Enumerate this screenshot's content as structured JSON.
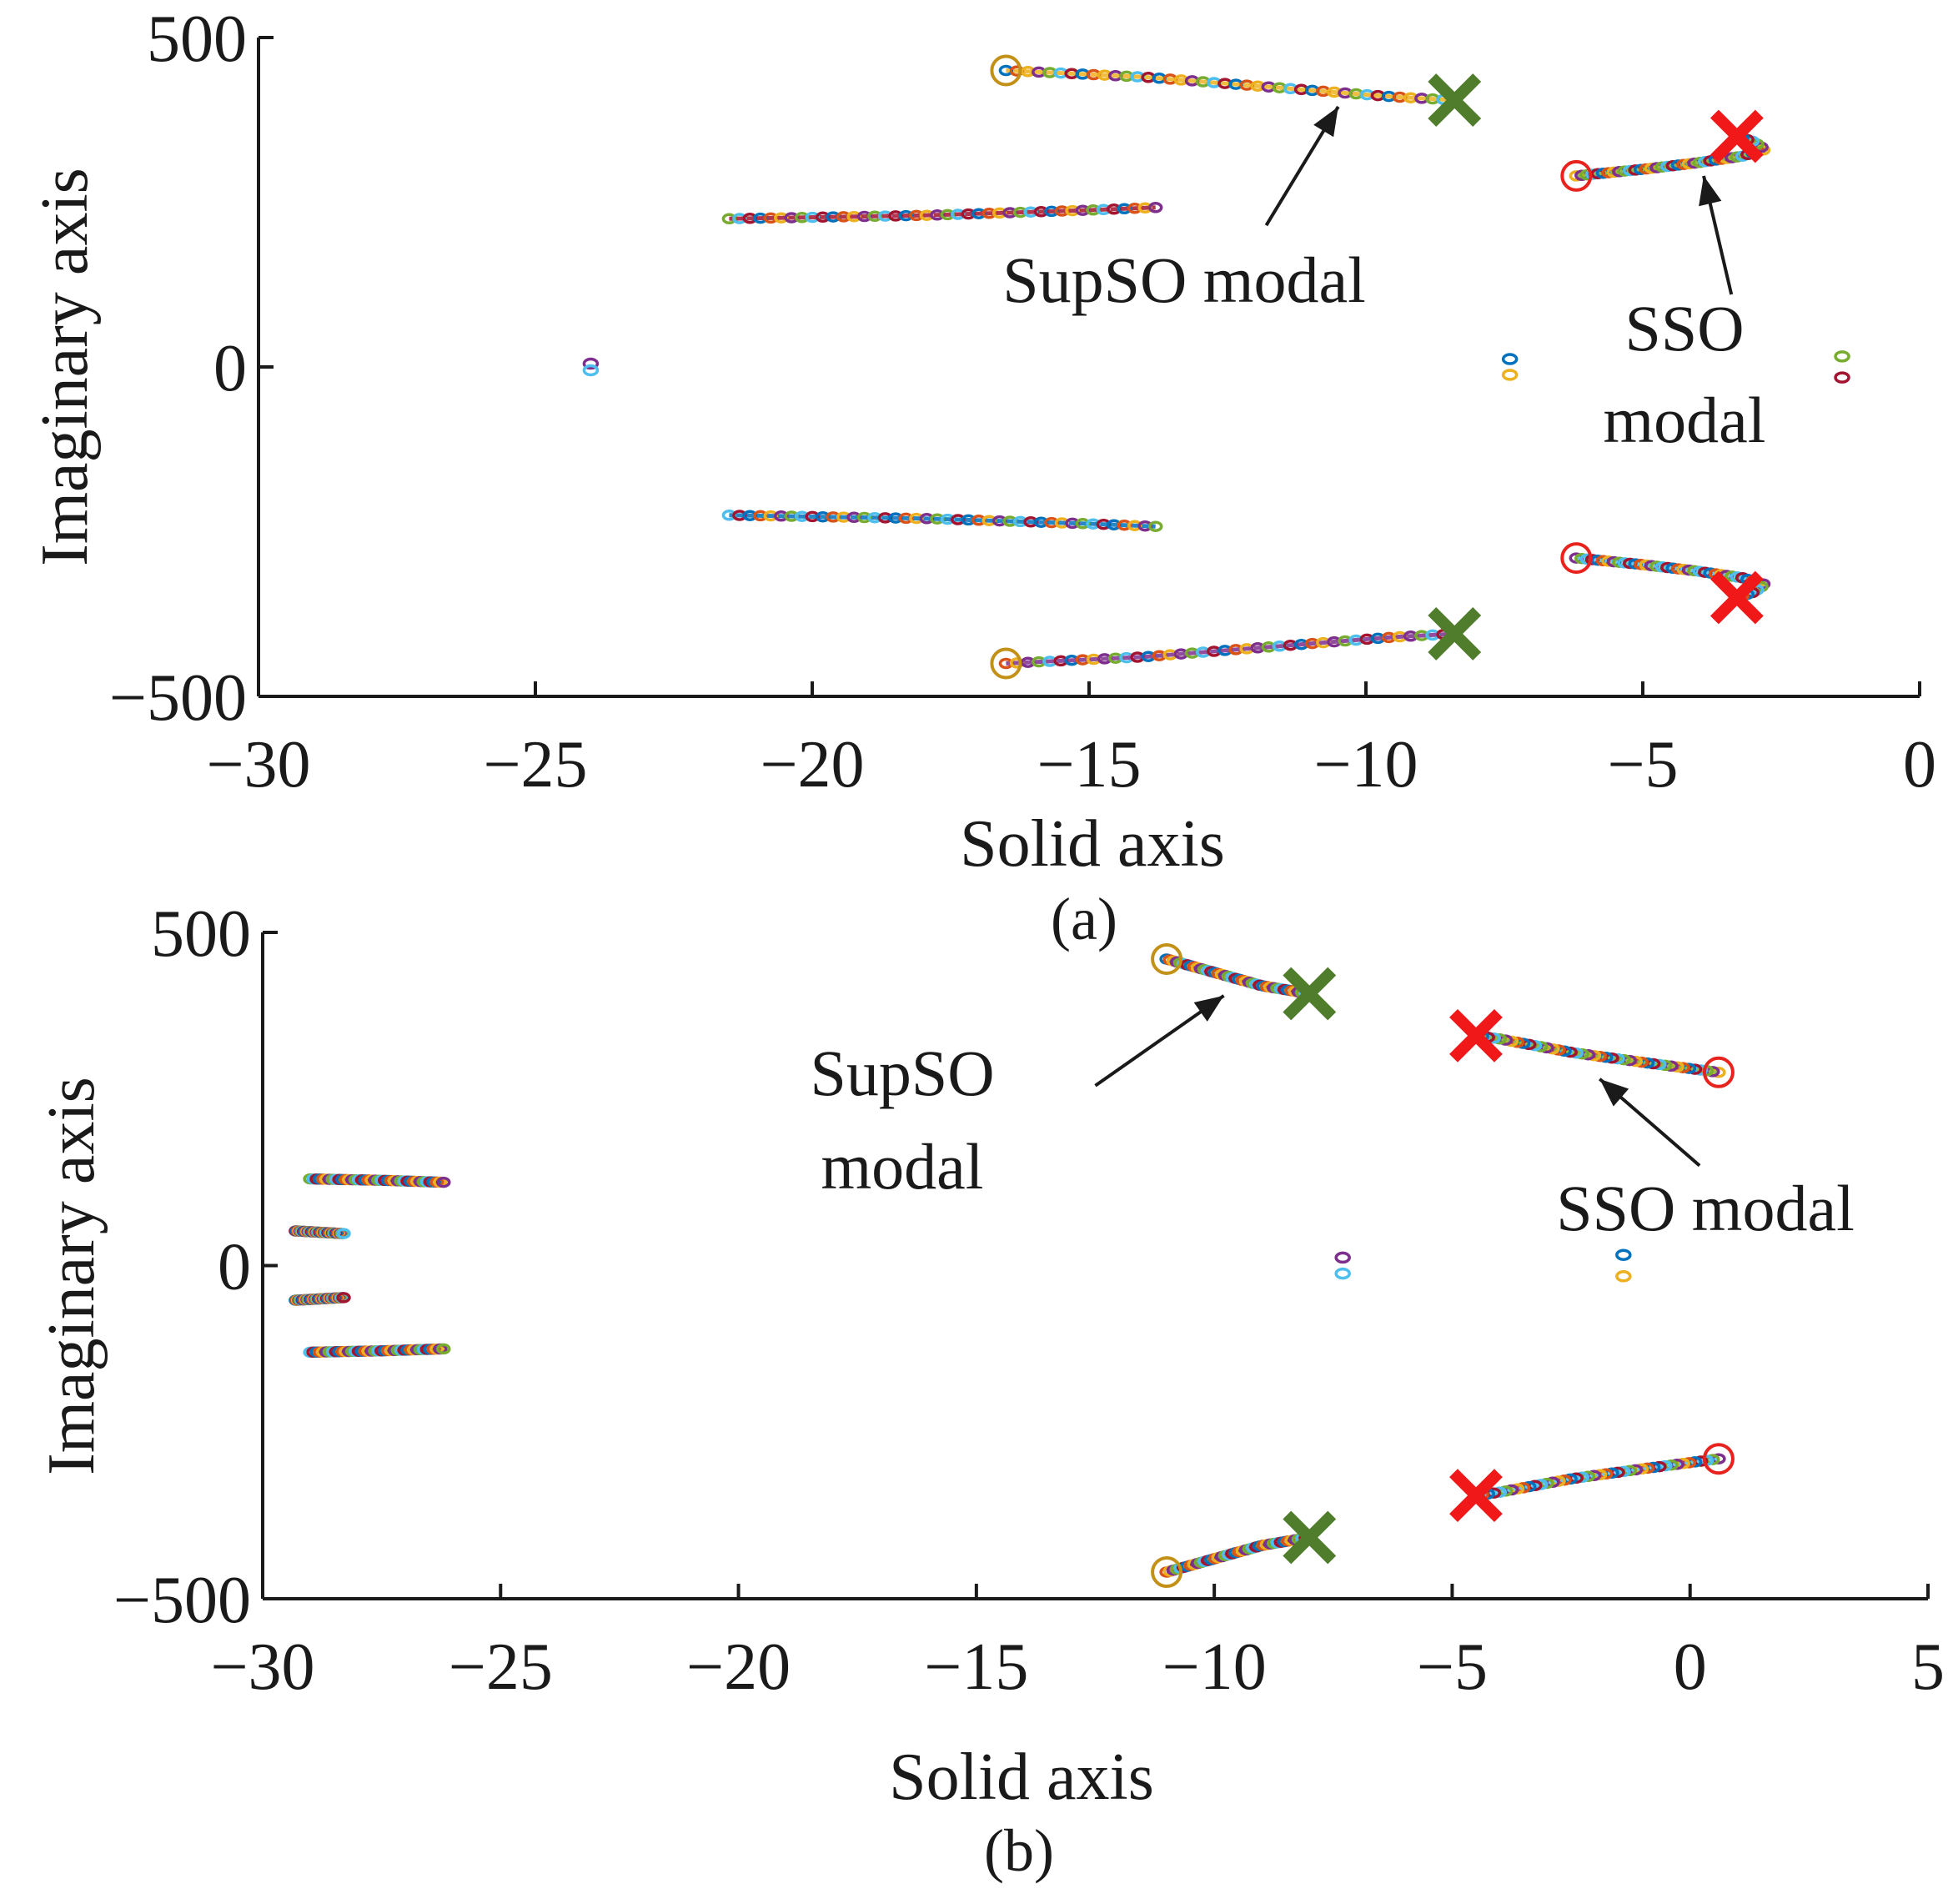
{
  "colors": {
    "axis": "#1a1a1a",
    "start_circle_red": "#e8231e",
    "start_circle_gold": "#c39118",
    "end_x_red": "#f01818",
    "end_x_green": "#4f7d2b",
    "palette": [
      "#0072bd",
      "#d95319",
      "#edb120",
      "#7e2f8e",
      "#77ac30",
      "#4dbeee",
      "#a2142f"
    ]
  },
  "chart_data": [
    {
      "type": "scatter",
      "panel_label": "(a)",
      "xlabel": "Solid axis",
      "ylabel": "Imaginary axis",
      "xlim": [
        -30,
        0
      ],
      "ylim": [
        -500,
        500
      ],
      "xticks": [
        -30,
        -25,
        -20,
        -15,
        -10,
        -5,
        0
      ],
      "xtick_labels": [
        "−30",
        "−25",
        "−20",
        "−15",
        "−10",
        "−5",
        "0"
      ],
      "yticks": [
        -500,
        0,
        500
      ],
      "ytick_labels": [
        "−500",
        "0",
        "500"
      ],
      "loci": [
        {
          "points": [
            [
              -16.5,
              450
            ],
            [
              -14,
              440
            ],
            [
              -11,
              420
            ],
            [
              -9.5,
              410
            ],
            [
              -8.4,
              405
            ]
          ],
          "start": "circle-gold",
          "end": "x-green"
        },
        {
          "points": [
            [
              -16.5,
              -450
            ],
            [
              -14,
              -440
            ],
            [
              -11,
              -420
            ],
            [
              -9.5,
              -410
            ],
            [
              -8.4,
              -405
            ]
          ],
          "start": "circle-gold",
          "end": "x-green"
        },
        {
          "points": [
            [
              -6.2,
              290
            ],
            [
              -5,
              300
            ],
            [
              -4,
              310
            ],
            [
              -3.2,
              320
            ],
            [
              -2.8,
              330
            ],
            [
              -3.0,
              342
            ],
            [
              -3.3,
              350
            ]
          ],
          "start": "circle-red",
          "end": "x-red"
        },
        {
          "points": [
            [
              -6.2,
              -290
            ],
            [
              -5,
              -300
            ],
            [
              -4,
              -310
            ],
            [
              -3.2,
              -320
            ],
            [
              -2.8,
              -330
            ],
            [
              -3.0,
              -342
            ],
            [
              -3.3,
              -350
            ]
          ],
          "start": "circle-red",
          "end": "x-red"
        },
        {
          "points": [
            [
              -21.5,
              225
            ],
            [
              -18,
              230
            ],
            [
              -15,
              238
            ],
            [
              -13.8,
              242
            ]
          ],
          "start": "none",
          "end": "none"
        },
        {
          "points": [
            [
              -21.5,
              -225
            ],
            [
              -18,
              -230
            ],
            [
              -15,
              -238
            ],
            [
              -13.8,
              -242
            ]
          ],
          "start": "none",
          "end": "none"
        }
      ],
      "clusters": [
        {
          "x": -24.0,
          "y": 5
        },
        {
          "x": -24.0,
          "y": -5
        },
        {
          "x": -7.4,
          "y": 12
        },
        {
          "x": -7.4,
          "y": -12
        },
        {
          "x": -1.4,
          "y": 16
        },
        {
          "x": -1.4,
          "y": -16
        }
      ],
      "annotations": [
        {
          "text": "SupSO modal",
          "arrow_from": [
            -11.8,
            215
          ],
          "arrow_to": [
            -10.5,
            395
          ]
        },
        {
          "text": "SSO",
          "text2": "modal",
          "arrow_from": [
            -3.4,
            110
          ],
          "arrow_to": [
            -3.9,
            290
          ]
        }
      ]
    },
    {
      "type": "scatter",
      "panel_label": "(b)",
      "xlabel": "Solid axis",
      "ylabel": "Imaginary axis",
      "xlim": [
        -30,
        5
      ],
      "ylim": [
        -500,
        500
      ],
      "xticks": [
        -30,
        -25,
        -20,
        -15,
        -10,
        -5,
        0,
        5
      ],
      "xtick_labels": [
        "−30",
        "−25",
        "−20",
        "−15",
        "−10",
        "−5",
        "0",
        "5"
      ],
      "yticks": [
        -500,
        0,
        500
      ],
      "ytick_labels": [
        "−500",
        "0",
        "500"
      ],
      "loci": [
        {
          "points": [
            [
              -11,
              460
            ],
            [
              -10,
              440
            ],
            [
              -9,
              420
            ],
            [
              -8,
              408
            ]
          ],
          "start": "circle-gold",
          "end": "x-green"
        },
        {
          "points": [
            [
              -11,
              -460
            ],
            [
              -10,
              -440
            ],
            [
              -9,
              -420
            ],
            [
              -8,
              -408
            ]
          ],
          "start": "circle-gold",
          "end": "x-green"
        },
        {
          "points": [
            [
              0.6,
              290
            ],
            [
              -1,
              305
            ],
            [
              -2.5,
              320
            ],
            [
              -4,
              340
            ],
            [
              -4.5,
              345
            ]
          ],
          "start": "circle-red",
          "end": "x-red"
        },
        {
          "points": [
            [
              0.6,
              -290
            ],
            [
              -1,
              -305
            ],
            [
              -2.5,
              -320
            ],
            [
              -4,
              -340
            ],
            [
              -4.5,
              -345
            ]
          ],
          "start": "circle-red",
          "end": "x-red"
        },
        {
          "points": [
            [
              -29.0,
              130
            ],
            [
              -27.5,
              128
            ],
            [
              -26.2,
              125
            ]
          ],
          "start": "none",
          "end": "none"
        },
        {
          "points": [
            [
              -29.0,
              -130
            ],
            [
              -27.5,
              -128
            ],
            [
              -26.2,
              -125
            ]
          ],
          "start": "none",
          "end": "none"
        },
        {
          "points": [
            [
              -29.3,
              52
            ],
            [
              -28.8,
              50
            ],
            [
              -28.3,
              48
            ]
          ],
          "start": "none",
          "end": "none"
        },
        {
          "points": [
            [
              -29.3,
              -52
            ],
            [
              -28.8,
              -50
            ],
            [
              -28.3,
              -48
            ]
          ],
          "start": "none",
          "end": "none"
        }
      ],
      "clusters": [
        {
          "x": -7.3,
          "y": 12
        },
        {
          "x": -7.3,
          "y": -12
        },
        {
          "x": -1.4,
          "y": 16
        },
        {
          "x": -1.4,
          "y": -16
        }
      ],
      "annotations": [
        {
          "text": "SupSO",
          "text2": "modal",
          "arrow_from": [
            -12.5,
            270
          ],
          "arrow_to": [
            -9.8,
            405
          ]
        },
        {
          "text": "SSO modal",
          "arrow_from": [
            0.2,
            150
          ],
          "arrow_to": [
            -1.9,
            280
          ]
        }
      ]
    }
  ]
}
